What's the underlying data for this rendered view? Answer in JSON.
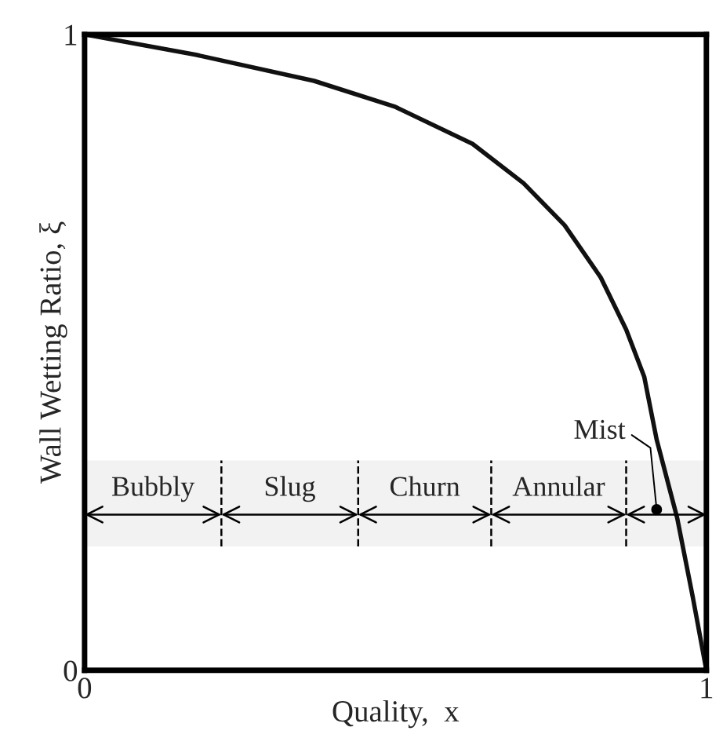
{
  "chart_data": {
    "type": "line",
    "xlabel": "Quality,  x",
    "ylabel": "Wall Wetting Ratio, ξ",
    "x": [
      0,
      0.179,
      0.369,
      0.5,
      0.624,
      0.706,
      0.772,
      0.83,
      0.871,
      0.9,
      0.92,
      0.953,
      0.978,
      1
    ],
    "series": [
      {
        "color": "#111111",
        "values": [
          1,
          0.968,
          0.927,
          0.886,
          0.828,
          0.766,
          0.7,
          0.618,
          0.536,
          0.462,
          0.363,
          0.24,
          0.116,
          0
        ]
      }
    ],
    "xlim": [
      0,
      1
    ],
    "ylim": [
      0,
      1
    ],
    "xticks": [
      0,
      1
    ],
    "yticks": [
      0,
      1
    ],
    "marker": "none",
    "line_style": "solid",
    "bands": [
      {
        "axis": "x",
        "from": 0,
        "to": 0.22,
        "label": "Bubbly"
      },
      {
        "axis": "x",
        "from": 0.22,
        "to": 0.44,
        "label": "Slug"
      },
      {
        "axis": "x",
        "from": 0.44,
        "to": 0.654,
        "label": "Churn"
      },
      {
        "axis": "x",
        "from": 0.654,
        "to": 0.871,
        "label": "Annular"
      },
      {
        "axis": "x",
        "from": 0.871,
        "to": 1,
        "label": "Mist"
      }
    ]
  }
}
